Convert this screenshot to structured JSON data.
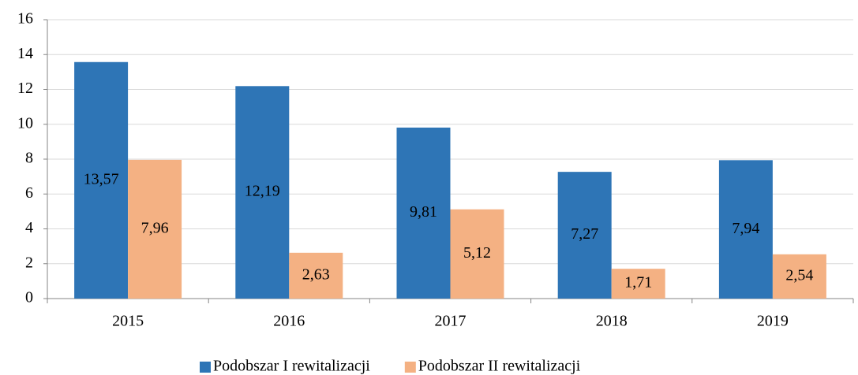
{
  "chart_data": {
    "type": "bar",
    "categories": [
      "2015",
      "2016",
      "2017",
      "2018",
      "2019"
    ],
    "series": [
      {
        "name": "Podobszar I rewitalizacji",
        "color": "#2e75b6",
        "values": [
          13.57,
          12.19,
          9.81,
          7.27,
          7.94
        ],
        "value_labels": [
          "13,57",
          "12,19",
          "9,81",
          "7,27",
          "7,94"
        ]
      },
      {
        "name": "Podobszar II rewitalizacji",
        "color": "#f4b183",
        "values": [
          7.96,
          2.63,
          5.12,
          1.71,
          2.54
        ],
        "value_labels": [
          "7,96",
          "2,63",
          "5,12",
          "1,71",
          "2,54"
        ]
      }
    ],
    "ylim": [
      0,
      16
    ],
    "yticks": [
      0,
      2,
      4,
      6,
      8,
      10,
      12,
      14,
      16
    ],
    "grid": true,
    "legend": "bottom"
  }
}
